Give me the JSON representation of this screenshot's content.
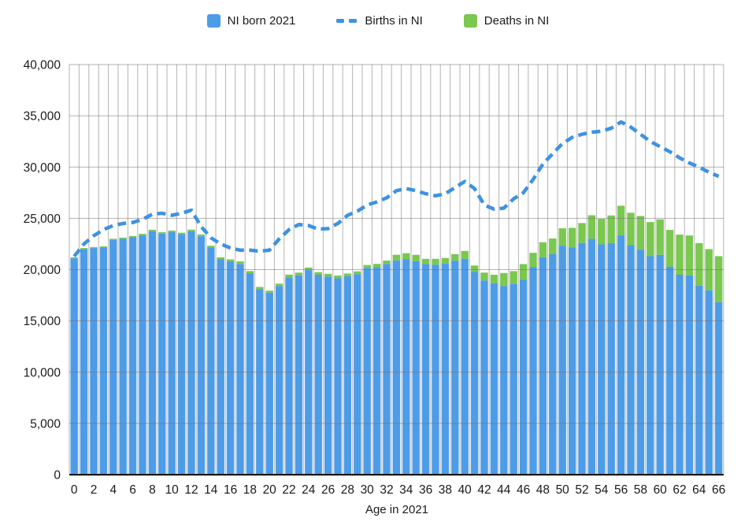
{
  "chart_data": {
    "type": "bar",
    "subtype": "stacked-bars-with-dashed-line-overlay",
    "title": "",
    "xlabel": "Age in 2021",
    "ylabel": "",
    "x_min": 0,
    "x_max": 66,
    "x_tick_step": 2,
    "ylim": [
      0,
      40000
    ],
    "y_tick_step": 5000,
    "grid": "both",
    "colors": {
      "bar_blue": "#4D9CE8",
      "bar_green": "#7AC84F",
      "line_blue": "#3E92E2",
      "gridline": "rgba(120,114,114,0.55)",
      "axis": "#000000",
      "text": "#1a1a1a"
    },
    "legend": {
      "position": "top",
      "items": [
        {
          "label": "NI born 2021",
          "marker": "square",
          "color": "#4D9CE8"
        },
        {
          "label": "Births in NI",
          "marker": "dashed-line",
          "color": "#3E92E2"
        },
        {
          "label": "Deaths in NI",
          "marker": "square",
          "color": "#7AC84F"
        }
      ]
    },
    "series": [
      {
        "name": "NI born 2021",
        "type": "bar",
        "stack_order": 0,
        "color": "#4D9CE8",
        "values": [
          21100,
          22000,
          22100,
          22150,
          22900,
          23000,
          23150,
          23350,
          23750,
          23500,
          23650,
          23450,
          23750,
          23250,
          22150,
          21000,
          20800,
          20550,
          19650,
          18100,
          17750,
          18400,
          19250,
          19450,
          19950,
          19500,
          19330,
          19150,
          19350,
          19550,
          20150,
          20250,
          20550,
          20900,
          21000,
          20820,
          20540,
          20480,
          20570,
          20870,
          21050,
          19770,
          18940,
          18680,
          18400,
          18600,
          19000,
          20230,
          21200,
          21500,
          22330,
          22150,
          22590,
          23000,
          22460,
          22590,
          23360,
          22385,
          21950,
          21310,
          21440,
          20280,
          19500,
          19440,
          18440,
          17980,
          16820
        ]
      },
      {
        "name": "Deaths in NI",
        "type": "bar",
        "stack_order": 1,
        "stacked_on": "NI born 2021",
        "color": "#7AC84F",
        "values": [
          100,
          100,
          100,
          110,
          110,
          120,
          130,
          140,
          140,
          150,
          160,
          150,
          150,
          180,
          180,
          200,
          200,
          250,
          210,
          210,
          200,
          230,
          260,
          255,
          255,
          255,
          260,
          270,
          270,
          280,
          300,
          310,
          330,
          550,
          600,
          620,
          510,
          570,
          560,
          640,
          770,
          630,
          770,
          820,
          1270,
          1250,
          1540,
          1410,
          1470,
          1540,
          1700,
          1925,
          1950,
          2300,
          2490,
          2690,
          2870,
          3155,
          3280,
          3330,
          3460,
          3590,
          3910,
          3890,
          4150,
          4020,
          4490
        ]
      },
      {
        "name": "Births in NI",
        "type": "line",
        "style": "dashed",
        "color": "#3E92E2",
        "values": [
          21300,
          22500,
          23300,
          23900,
          24300,
          24500,
          24600,
          24900,
          25400,
          25500,
          25300,
          25500,
          25800,
          24200,
          23100,
          22500,
          22100,
          21900,
          21900,
          21800,
          21900,
          23000,
          23900,
          24400,
          24300,
          23950,
          24000,
          24500,
          25300,
          25700,
          26300,
          26600,
          27000,
          27700,
          27900,
          27700,
          27400,
          27200,
          27400,
          28000,
          28600,
          27900,
          26300,
          25900,
          26000,
          26900,
          27500,
          28800,
          30300,
          31300,
          32300,
          32900,
          33200,
          33400,
          33500,
          33800,
          34400,
          33900,
          33200,
          32500,
          32000,
          31500,
          30900,
          30400,
          30000,
          29500,
          29100
        ]
      }
    ]
  }
}
